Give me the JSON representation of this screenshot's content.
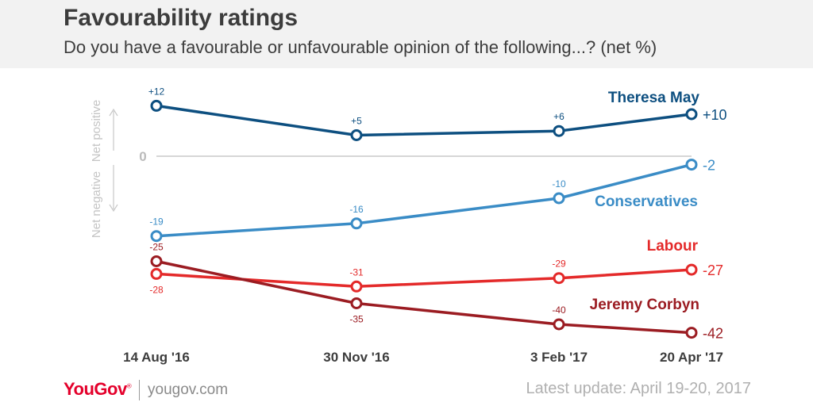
{
  "header": {
    "title": "Favourability ratings",
    "subtitle": "Do you have a favourable or unfavourable opinion of the following...? (net %)"
  },
  "footer": {
    "logo": "YouGov",
    "logo_mark": "®",
    "site": "yougov.com",
    "update": "Latest update: April 19-20, 2017"
  },
  "colors": {
    "theresa_may": "#0d4f80",
    "conservatives": "#3a8cc6",
    "labour": "#e42a2a",
    "jeremy_corbyn": "#9b1c22",
    "axis": "#c8c8c8"
  },
  "chart_data": {
    "type": "line",
    "x": [
      "14 Aug '16",
      "30 Nov '16",
      "3 Feb '17",
      "20 Apr '17"
    ],
    "x_dates": [
      "2016-08-14",
      "2016-11-30",
      "2017-02-03",
      "2017-04-20"
    ],
    "zero_label": "0",
    "ylabel_positive": "Net positive",
    "ylabel_negative": "Net negative",
    "ylim": [
      -45,
      15
    ],
    "grid": false,
    "series": [
      {
        "name": "Theresa May",
        "key": "theresa_may",
        "values": [
          12,
          5,
          6,
          10
        ],
        "labels": [
          "+12",
          "+5",
          "+6",
          "+10"
        ]
      },
      {
        "name": "Conservatives",
        "key": "conservatives",
        "values": [
          -19,
          -16,
          -10,
          -2
        ],
        "labels": [
          "-19",
          "-16",
          "-10",
          "-2"
        ]
      },
      {
        "name": "Labour",
        "key": "labour",
        "values": [
          -28,
          -31,
          -29,
          -27
        ],
        "labels": [
          "-28",
          "-31",
          "-29",
          "-27"
        ]
      },
      {
        "name": "Jeremy Corbyn",
        "key": "jeremy_corbyn",
        "values": [
          -25,
          -35,
          -40,
          -42
        ],
        "labels": [
          "-25",
          "-35",
          "-40",
          "-42"
        ]
      }
    ]
  }
}
